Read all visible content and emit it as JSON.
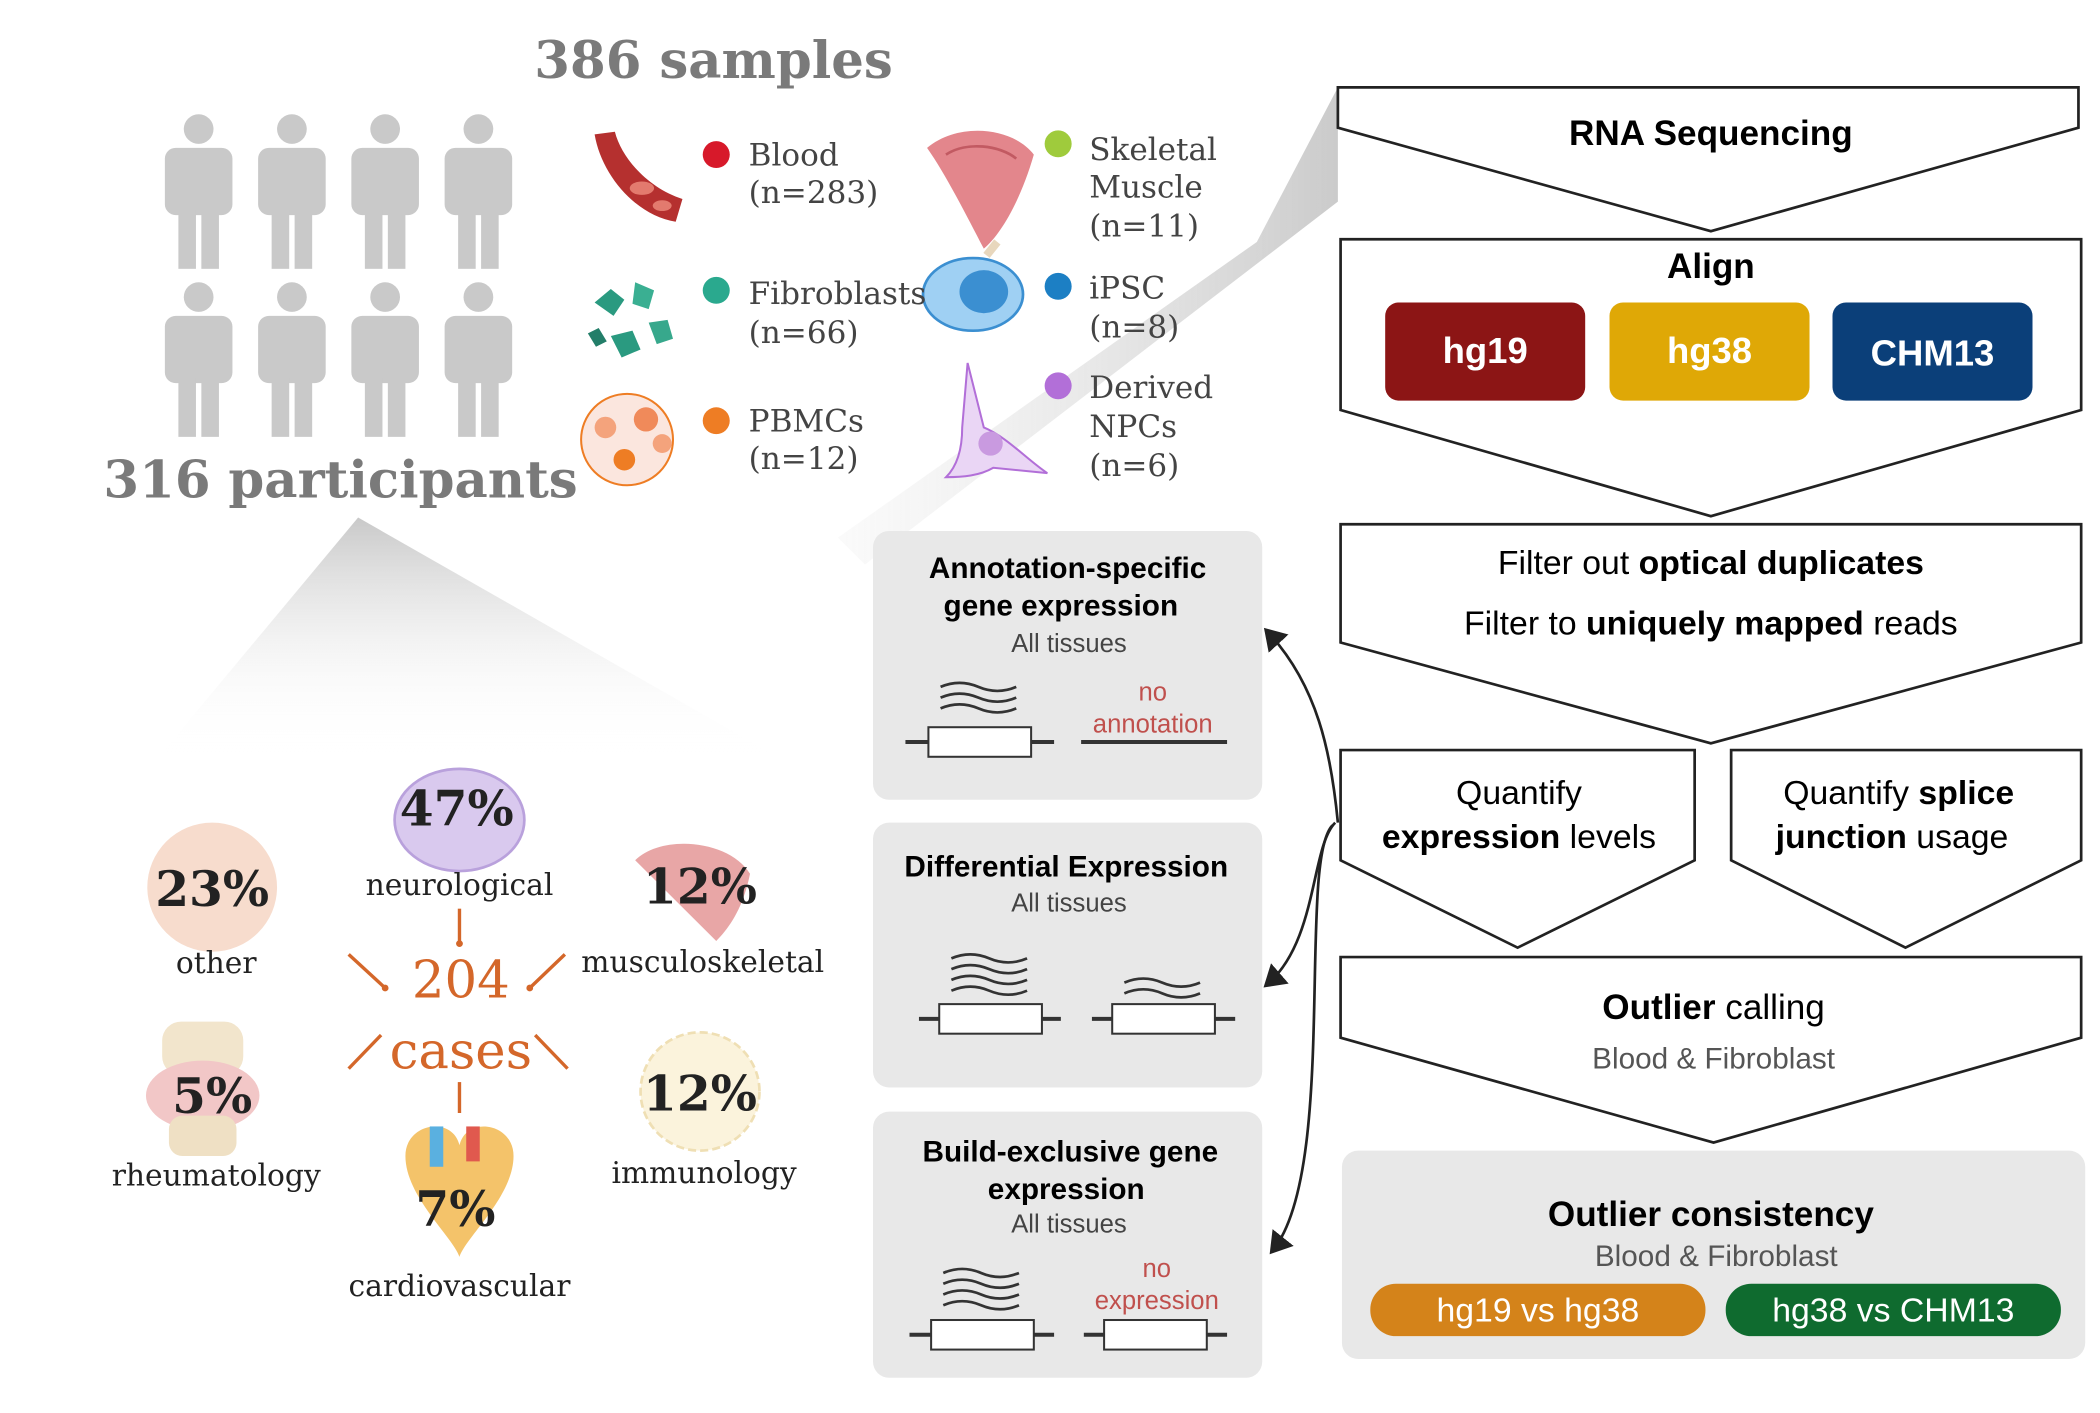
{
  "header": {
    "samples_title": "386 samples",
    "participants_title": "316 participants"
  },
  "tissues": [
    {
      "name": "Blood",
      "count": "(n=283)",
      "dot_color": "#d7192a"
    },
    {
      "name": "Fibroblasts",
      "count": "(n=66)",
      "dot_color": "#2aa98e"
    },
    {
      "name": "PBMCs",
      "count": "(n=12)",
      "dot_color": "#ee7d24"
    },
    {
      "name_line1": "Skeletal",
      "name_line2": "Muscle",
      "count": "(n=11)",
      "dot_color": "#9fcb3c"
    },
    {
      "name": "iPSC",
      "count": "(n=8)",
      "dot_color": "#1c7fc4"
    },
    {
      "name_line1": "Derived",
      "name_line2": "NPCs",
      "count": "(n=6)",
      "dot_color": "#b26fd8"
    }
  ],
  "cases": {
    "number": "204",
    "label": "cases",
    "categories": [
      {
        "pct": "23%",
        "label": "other"
      },
      {
        "pct": "47%",
        "label": "neurological"
      },
      {
        "pct": "12%",
        "label": "musculoskeletal"
      },
      {
        "pct": "5%",
        "label": "rheumatology"
      },
      {
        "pct": "7%",
        "label": "cardiovascular"
      },
      {
        "pct": "12%",
        "label": "immunology"
      }
    ]
  },
  "pipeline": {
    "rna_seq": "RNA Sequencing",
    "align": "Align",
    "builds": [
      {
        "label": "hg19",
        "color": "#8c1515"
      },
      {
        "label": "hg38",
        "color": "#dfa806"
      },
      {
        "label": "CHM13",
        "color": "#0b3f79"
      }
    ],
    "filter_line1_pre": "Filter out ",
    "filter_line1_bold": "optical duplicates",
    "filter_line2_pre": "Filter to ",
    "filter_line2_bold": "uniquely mapped",
    "filter_line2_post": " reads",
    "quant_expr_line1": "Quantify",
    "quant_expr_bold": "expression",
    "quant_expr_post": " levels",
    "quant_splice_pre": "Quantify ",
    "quant_splice_bold1": "splice",
    "quant_splice_bold2": "junction",
    "quant_splice_post": " usage",
    "outlier_bold": "Outlier",
    "outlier_post": " calling",
    "outlier_sub": "Blood & Fibroblast",
    "consistency_title": "Outlier consistency",
    "consistency_sub": "Blood & Fibroblast",
    "comparisons": [
      {
        "label": "hg19 vs hg38",
        "color": "#d4831a"
      },
      {
        "label": "hg38 vs CHM13",
        "color": "#0f6b2f"
      }
    ]
  },
  "analyses": [
    {
      "title_line1": "Annotation-specific",
      "title_line2": "gene expression",
      "sub": "All tissues",
      "note_line1": "no",
      "note_line2": "annotation"
    },
    {
      "title_line1": "Differential Expression",
      "sub": "All tissues"
    },
    {
      "title_line1": "Build-exclusive gene",
      "title_line2": "expression",
      "sub": "All tissues",
      "note_line1": "no",
      "note_line2": "expression"
    }
  ],
  "colors": {
    "grey_text": "#7a7a7a",
    "person": "#c9c9c9",
    "cases_orange": "#d4672a",
    "panel_bg": "#e8e8e8",
    "note_red": "#c0504d"
  }
}
